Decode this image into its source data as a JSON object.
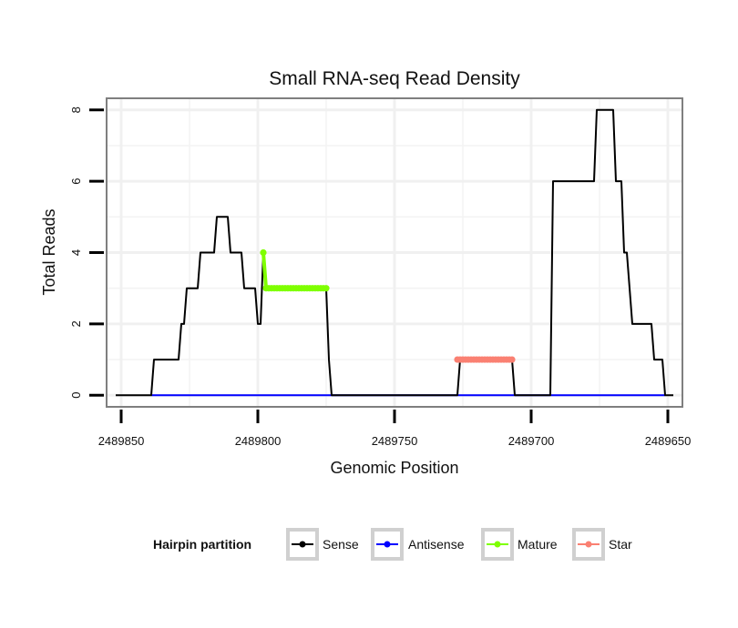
{
  "chart_data": {
    "type": "line",
    "title": "Small RNA-seq Read Density",
    "xlabel": "Genomic Position",
    "ylabel": "Total Reads",
    "x_reversed": true,
    "xlim": [
      2489855,
      2489645
    ],
    "ylim": [
      -0.3,
      8.3
    ],
    "x_ticks": [
      2489850,
      2489800,
      2489750,
      2489700,
      2489650
    ],
    "x_tick_labels": [
      "2489850",
      "2489800",
      "2489750",
      "2489700",
      "2489650"
    ],
    "y_ticks": [
      0,
      2,
      4,
      6,
      8
    ],
    "y_tick_labels": [
      "0",
      "2",
      "4",
      "6",
      "8"
    ],
    "grid": true,
    "legend": {
      "title": "Hairpin partition",
      "position": "bottom",
      "entries": [
        {
          "name": "Sense",
          "color": "#000000"
        },
        {
          "name": "Antisense",
          "color": "#0000ff"
        },
        {
          "name": "Mature",
          "color": "#7fff00"
        },
        {
          "name": "Star",
          "color": "#fa8072"
        }
      ]
    },
    "series": [
      {
        "name": "Sense",
        "color": "#000000",
        "marker": false,
        "points": [
          [
            2489852,
            0
          ],
          [
            2489839,
            0
          ],
          [
            2489838,
            1
          ],
          [
            2489829,
            1
          ],
          [
            2489828,
            2
          ],
          [
            2489827,
            2
          ],
          [
            2489826,
            3
          ],
          [
            2489822,
            3
          ],
          [
            2489821,
            4
          ],
          [
            2489816,
            4
          ],
          [
            2489815,
            5
          ],
          [
            2489811,
            5
          ],
          [
            2489810,
            4
          ],
          [
            2489806,
            4
          ],
          [
            2489805,
            3
          ],
          [
            2489801,
            3
          ],
          [
            2489800,
            2
          ],
          [
            2489799,
            2
          ],
          [
            2489798,
            4
          ],
          [
            2489797,
            3
          ],
          [
            2489775,
            3
          ],
          [
            2489774,
            1
          ],
          [
            2489773,
            0
          ],
          [
            2489727,
            0
          ],
          [
            2489726,
            1
          ],
          [
            2489707,
            1
          ],
          [
            2489706,
            0
          ],
          [
            2489693,
            0
          ],
          [
            2489692,
            6
          ],
          [
            2489677,
            6
          ],
          [
            2489676,
            8
          ],
          [
            2489670,
            8
          ],
          [
            2489669,
            6
          ],
          [
            2489667,
            6
          ],
          [
            2489666,
            4
          ],
          [
            2489665,
            4
          ],
          [
            2489664,
            3
          ],
          [
            2489663,
            2
          ],
          [
            2489656,
            2
          ],
          [
            2489655,
            1
          ],
          [
            2489652,
            1
          ],
          [
            2489651,
            0
          ],
          [
            2489648,
            0
          ]
        ]
      },
      {
        "name": "Antisense",
        "color": "#0000ff",
        "marker": false,
        "points": [
          [
            2489839,
            0
          ],
          [
            2489651,
            0
          ]
        ]
      },
      {
        "name": "Mature",
        "color": "#7fff00",
        "marker": true,
        "points": [
          [
            2489798,
            4
          ],
          [
            2489797,
            3
          ],
          [
            2489796,
            3
          ],
          [
            2489795,
            3
          ],
          [
            2489794,
            3
          ],
          [
            2489793,
            3
          ],
          [
            2489792,
            3
          ],
          [
            2489791,
            3
          ],
          [
            2489790,
            3
          ],
          [
            2489789,
            3
          ],
          [
            2489788,
            3
          ],
          [
            2489787,
            3
          ],
          [
            2489786,
            3
          ],
          [
            2489785,
            3
          ],
          [
            2489784,
            3
          ],
          [
            2489783,
            3
          ],
          [
            2489782,
            3
          ],
          [
            2489781,
            3
          ],
          [
            2489780,
            3
          ],
          [
            2489779,
            3
          ],
          [
            2489778,
            3
          ],
          [
            2489777,
            3
          ],
          [
            2489776,
            3
          ],
          [
            2489775,
            3
          ]
        ]
      },
      {
        "name": "Star",
        "color": "#fa8072",
        "marker": true,
        "points": [
          [
            2489727,
            1
          ],
          [
            2489726,
            1
          ],
          [
            2489725,
            1
          ],
          [
            2489724,
            1
          ],
          [
            2489723,
            1
          ],
          [
            2489722,
            1
          ],
          [
            2489721,
            1
          ],
          [
            2489720,
            1
          ],
          [
            2489719,
            1
          ],
          [
            2489718,
            1
          ],
          [
            2489717,
            1
          ],
          [
            2489716,
            1
          ],
          [
            2489715,
            1
          ],
          [
            2489714,
            1
          ],
          [
            2489713,
            1
          ],
          [
            2489712,
            1
          ],
          [
            2489711,
            1
          ],
          [
            2489710,
            1
          ],
          [
            2489709,
            1
          ],
          [
            2489708,
            1
          ],
          [
            2489707,
            1
          ]
        ]
      }
    ]
  }
}
